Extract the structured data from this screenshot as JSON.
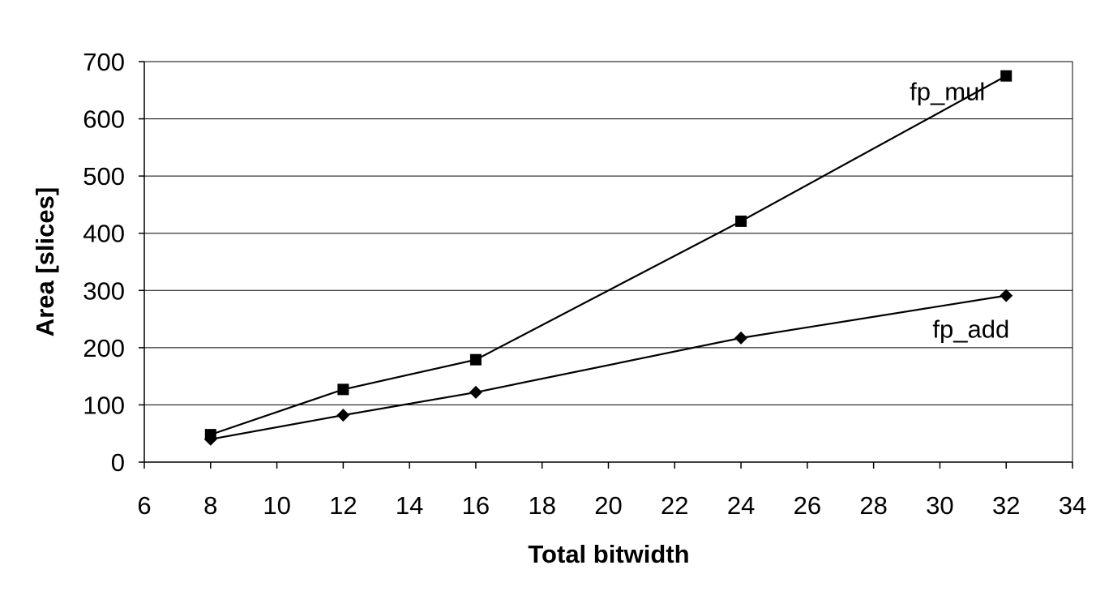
{
  "chart_data": {
    "type": "line",
    "title": "",
    "xlabel": "Total bitwidth",
    "ylabel": "Area [slices]",
    "xlim": [
      6,
      34
    ],
    "ylim": [
      0,
      700
    ],
    "xticks": [
      "6",
      "8",
      "10",
      "12",
      "14",
      "16",
      "18",
      "20",
      "22",
      "24",
      "26",
      "28",
      "30",
      "32",
      "34"
    ],
    "yticks": [
      "0",
      "100",
      "200",
      "300",
      "400",
      "500",
      "600",
      "700"
    ],
    "grid": "horizontal",
    "legend": "none",
    "series": [
      {
        "name": "fp_mul",
        "marker": "square",
        "x": [
          8,
          12,
          16,
          24,
          32
        ],
        "y": [
          48,
          127,
          179,
          421,
          675
        ]
      },
      {
        "name": "fp_add",
        "marker": "diamond",
        "x": [
          8,
          12,
          16,
          24,
          32
        ],
        "y": [
          40,
          82,
          122,
          217,
          291
        ]
      }
    ]
  }
}
